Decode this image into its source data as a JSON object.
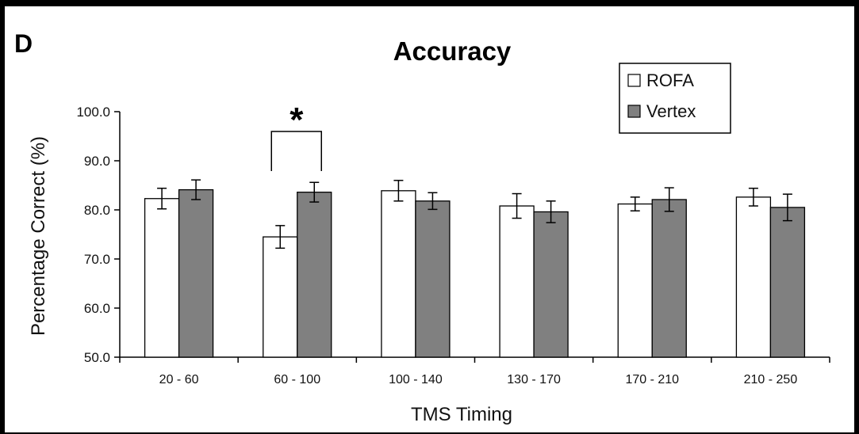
{
  "panel_letter": "D",
  "chart_data": {
    "type": "bar",
    "title": "Accuracy",
    "xlabel": "TMS Timing",
    "ylabel": "Percentage Correct (%)",
    "ylim": [
      50,
      100
    ],
    "yticks": [
      "50.0",
      "60.0",
      "70.0",
      "80.0",
      "90.0",
      "100.0"
    ],
    "categories": [
      "20 - 60",
      "60 - 100",
      "100 - 140",
      "130 - 170",
      "170 - 210",
      "210 - 250"
    ],
    "series": [
      {
        "name": "ROFA",
        "color": "#ffffff",
        "values": [
          82.3,
          74.5,
          83.9,
          80.8,
          81.2,
          82.6
        ],
        "errors": [
          2.1,
          2.3,
          2.1,
          2.5,
          1.4,
          1.8
        ]
      },
      {
        "name": "Vertex",
        "color": "#808080",
        "values": [
          84.1,
          83.6,
          81.8,
          79.6,
          82.1,
          80.5
        ],
        "errors": [
          2.0,
          2.0,
          1.7,
          2.2,
          2.4,
          2.7
        ]
      }
    ],
    "legend_position": "top-right",
    "grid": false,
    "annotations": [
      {
        "text": "*",
        "category": "60 - 100",
        "type": "significance-bracket"
      }
    ]
  }
}
